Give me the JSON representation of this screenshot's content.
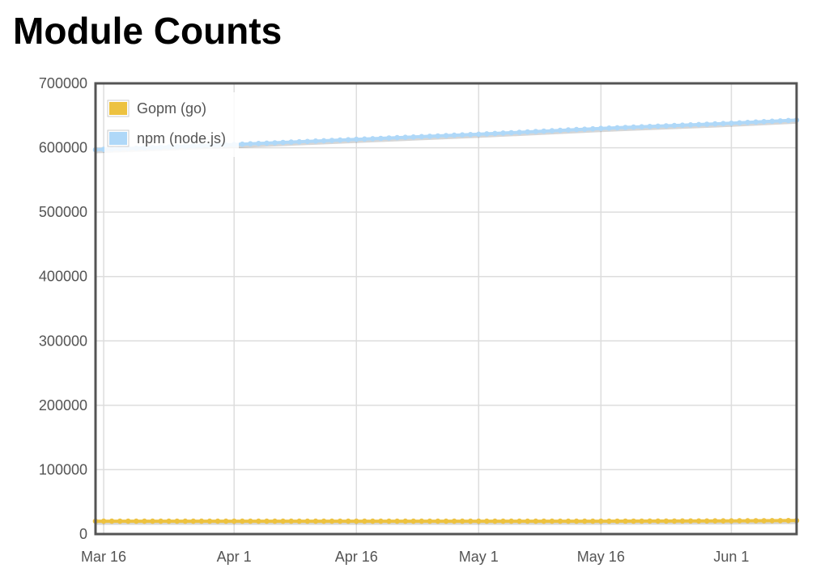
{
  "page": {
    "title": "Module Counts"
  },
  "colors": {
    "gopm": "#edc240",
    "npm": "#afd8f8",
    "grid": "#dddddd",
    "frame": "#545454",
    "tick_text": "#545454"
  },
  "chart_data": {
    "type": "line",
    "title": "",
    "xlabel": "",
    "ylabel": "",
    "x_type": "date",
    "xlim": [
      "2014-03-15",
      "2014-06-09"
    ],
    "ylim": [
      0,
      700000
    ],
    "y_ticks": [
      0,
      100000,
      200000,
      300000,
      400000,
      500000,
      600000,
      700000
    ],
    "y_tick_labels": [
      "0",
      "100000",
      "200000",
      "300000",
      "400000",
      "500000",
      "600000",
      "700000"
    ],
    "x_ticks": [
      "2014-03-16",
      "2014-04-01",
      "2014-04-16",
      "2014-05-01",
      "2014-05-16",
      "2014-06-01"
    ],
    "x_tick_labels": [
      "Mar 16",
      "Apr 1",
      "Apr 16",
      "May 1",
      "May 16",
      "Jun 1"
    ],
    "grid": true,
    "legend_position": "top-left",
    "series": [
      {
        "name": "Gopm (go)",
        "color": "#edc240",
        "points": [
          [
            "2014-03-15",
            20000
          ],
          [
            "2014-04-01",
            20000
          ],
          [
            "2014-04-16",
            20000
          ],
          [
            "2014-05-01",
            20000
          ],
          [
            "2014-05-16",
            20000
          ],
          [
            "2014-06-01",
            20500
          ],
          [
            "2014-06-09",
            21000
          ]
        ]
      },
      {
        "name": "npm (node.js)",
        "color": "#afd8f8",
        "points": [
          [
            "2014-03-15",
            597000
          ],
          [
            "2014-04-01",
            605000
          ],
          [
            "2014-04-16",
            613000
          ],
          [
            "2014-05-01",
            621000
          ],
          [
            "2014-05-16",
            630000
          ],
          [
            "2014-06-01",
            638000
          ],
          [
            "2014-06-09",
            643000
          ]
        ]
      }
    ]
  }
}
